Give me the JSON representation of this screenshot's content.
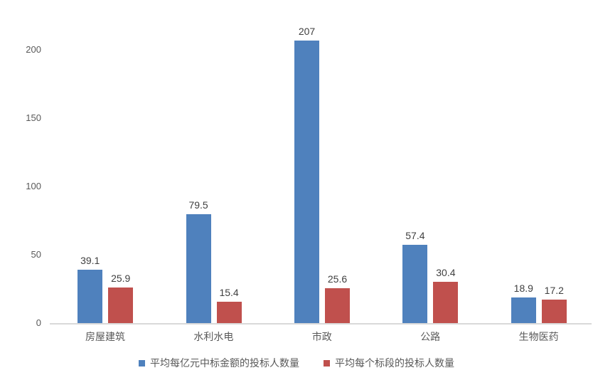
{
  "chart_data": {
    "type": "bar",
    "categories": [
      "房屋建筑",
      "水利水电",
      "市政",
      "公路",
      "生物医药"
    ],
    "series": [
      {
        "name": "平均每亿元中标金额的投标人数量",
        "color": "#4F81BD",
        "values": [
          39.1,
          79.5,
          207,
          57.4,
          18.9
        ]
      },
      {
        "name": "平均每个标段的投标人数量",
        "color": "#C0504D",
        "values": [
          25.9,
          15.4,
          25.6,
          30.4,
          17.2
        ]
      }
    ],
    "title": "",
    "xlabel": "",
    "ylabel": "",
    "ylim": [
      0,
      200
    ],
    "yticks": [
      0,
      50,
      100,
      150,
      200
    ],
    "grid": false,
    "legend_position": "bottom",
    "colors": {
      "axis_line": "#d9d9d9",
      "tick_label": "#595959",
      "data_label": "#3f3f3f",
      "category_label": "#595959",
      "background": "#ffffff"
    }
  }
}
